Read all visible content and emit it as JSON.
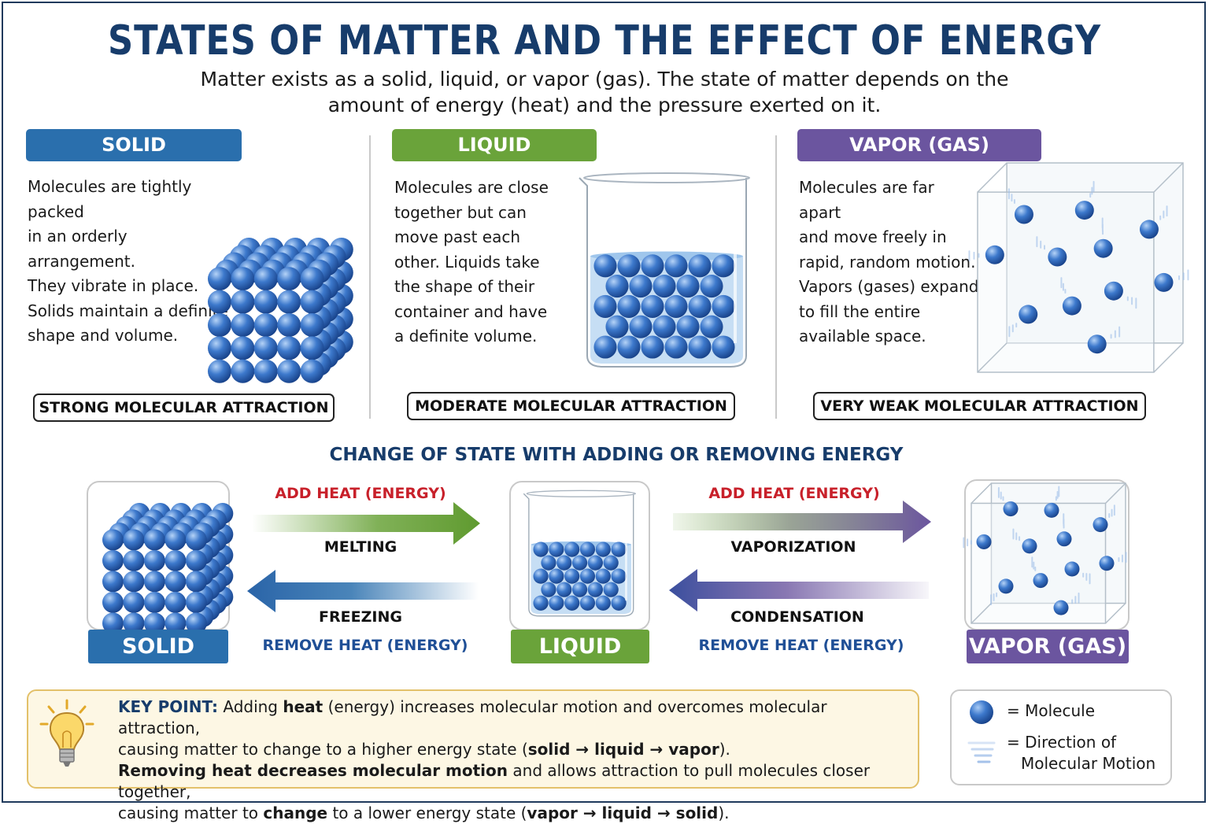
{
  "title": "STATES OF MATTER AND THE EFFECT OF ENERGY",
  "subtitle": {
    "line1": "Matter exists as a solid, liquid, or vapor (gas). The state of matter depends on the",
    "line2": "amount of energy (heat) and the pressure exerted on it."
  },
  "colors": {
    "solid": "#2a6fad",
    "liquid": "#6aa33a",
    "vapor": "#6b559f",
    "heading": "#173c6b",
    "heat_red": "#c8202a",
    "remove_blue": "#1f4f96",
    "molecule": "#2c63b8"
  },
  "states": {
    "solid": {
      "banner": "SOLID",
      "lines": [
        "Molecules are tightly packed",
        "in an orderly arrangement.",
        "They vibrate in place.",
        "Solids maintain a definite",
        "shape and volume."
      ],
      "attraction": "STRONG MOLECULAR ATTRACTION"
    },
    "liquid": {
      "banner": "LIQUID",
      "lines": [
        "Molecules are close",
        "together but can",
        "move past each",
        "other. Liquids take",
        "the shape of their",
        "container and have",
        "a definite volume."
      ],
      "attraction": "MODERATE MOLECULAR ATTRACTION"
    },
    "vapor": {
      "banner": "VAPOR (GAS)",
      "lines": [
        "Molecules are far apart",
        "and move freely in",
        "rapid, random motion.",
        "Vapors (gases) expand",
        "to fill the entire",
        "available space."
      ],
      "attraction": "VERY WEAK MOLECULAR ATTRACTION"
    }
  },
  "change": {
    "heading": "CHANGE OF STATE WITH ADDING OR REMOVING ENERGY",
    "labels": {
      "solid": "SOLID",
      "liquid": "LIQUID",
      "vapor": "VAPOR (GAS)"
    },
    "add_heat": "ADD HEAT (ENERGY)",
    "remove_heat": "REMOVE HEAT (ENERGY)",
    "melting": "MELTING",
    "freezing": "FREEZING",
    "vaporization": "VAPORIZATION",
    "condensation": "CONDENSATION"
  },
  "key_point": {
    "label": "KEY POINT:",
    "l1_rest": " Adding ",
    "l1_b1": "heat",
    "l1_rest2": " (energy) increases molecular motion and overcomes molecular attraction,",
    "l2_a": "causing matter to change to a higher energy state (",
    "l2_b": "solid → liquid → vapor",
    "l2_c": ").",
    "l3_b": "Removing heat decreases molecular motion",
    "l3_rest": " and allows attraction to pull molecules closer together,",
    "l4_a": "causing matter to ",
    "l4_b": "change",
    "l4_c": " to a lower energy state (",
    "l4_d": "vapor → liquid → solid",
    "l4_e": ")."
  },
  "legend": {
    "molecule": "= Molecule",
    "motion_1": "= Direction of",
    "motion_2": "Molecular Motion"
  }
}
